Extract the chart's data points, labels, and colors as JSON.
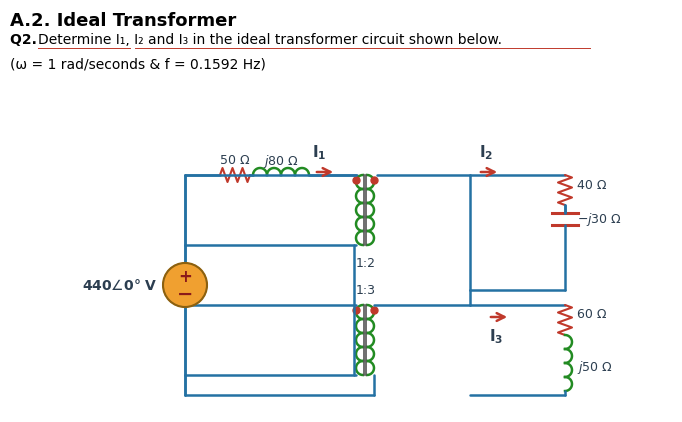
{
  "title": "A.2. Ideal Transformer",
  "q2_text": "Q2. Determine I₁, I₂ and I₃ in the ideal transformer circuit shown below.",
  "q2_underline_text": "Determine I₁, I₂ and I₃ in the ideal transformer circuit shown below.",
  "param_text": "(ω = 1 rad/seconds & f = 0.1592 Hz)",
  "bg_color": "#ffffff",
  "blue": "#1a5276",
  "dark_blue": "#154360",
  "green": "#1a7a1a",
  "red": "#c0392b",
  "orange_circle": "#f0a030",
  "resistor_color": "#c0392b",
  "inductor_color": "#228B22",
  "wire_color": "#2471a3",
  "text_color": "#2c3e50",
  "label_color": "#2e4053"
}
